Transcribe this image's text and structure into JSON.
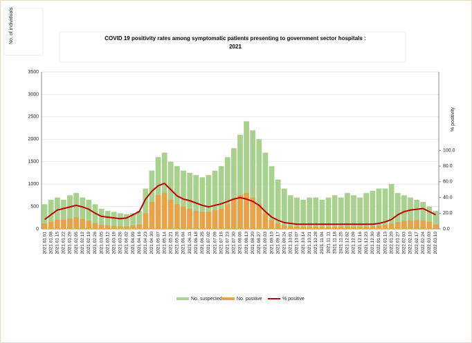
{
  "chart_data": {
    "type": "bar-line",
    "title": "COVID 19 positivity rates among symptomatic patients presenting to government sector hospitals : 2021",
    "y_label": "No. of individuals",
    "y2_label": "% positivity",
    "categories": [
      "2021.01.01",
      "2021.01.08",
      "2021.01.15",
      "2021.01.22",
      "2021.01.29",
      "2021.02.05",
      "2021.02.12",
      "2021.02.19",
      "2021.02.26",
      "2021.03.05",
      "2021.03.12",
      "2021.03.19",
      "2021.03.26",
      "2021.04.02",
      "2021.04.09",
      "2021.04.16",
      "2021.04.23",
      "2021.04.30",
      "2021.05.07",
      "2021.05.14",
      "2021.05.21",
      "2021.05.28",
      "2021.06.04",
      "2021.06.11",
      "2021.06.18",
      "2021.06.25",
      "2021.07.02",
      "2021.07.09",
      "2021.07.16",
      "2021.07.23",
      "2021.07.30",
      "2021.08.06",
      "2021.08.13",
      "2021.08.20",
      "2021.08.27",
      "2021.09.03",
      "2021.09.10",
      "2021.09.17",
      "2021.09.24",
      "2021.10.01",
      "2021.10.07",
      "2021.10.14",
      "2021.10.21",
      "2021.10.28",
      "2021.11.04",
      "2021.11.11",
      "2021.11.18",
      "2021.11.25",
      "2021.12.02",
      "2021.12.09",
      "2021.12.16",
      "2021.12.23",
      "2021.12.30",
      "2022.01.06",
      "2022.01.13",
      "2022.01.20",
      "2022.01.27",
      "2022.02.03",
      "2022.02.10",
      "2022.02.17",
      "2022.02.24",
      "2022.03.03",
      "2022.03.10"
    ],
    "series": [
      {
        "name": "No. suspected",
        "color": "#a9d18e",
        "values": [
          550,
          650,
          700,
          650,
          750,
          800,
          700,
          650,
          550,
          450,
          400,
          380,
          350,
          330,
          350,
          400,
          900,
          1300,
          1600,
          1700,
          1500,
          1400,
          1300,
          1250,
          1200,
          1150,
          1200,
          1300,
          1400,
          1600,
          1800,
          2100,
          2400,
          2200,
          2000,
          1700,
          1400,
          1100,
          900,
          750,
          700,
          650,
          700,
          700,
          650,
          700,
          750,
          700,
          800,
          750,
          700,
          800,
          850,
          900,
          900,
          1000,
          800,
          750,
          700,
          650,
          600,
          500,
          400
        ]
      },
      {
        "name": "No. positive",
        "color": "#e8a24a",
        "values": [
          120,
          160,
          200,
          200,
          230,
          260,
          220,
          180,
          130,
          90,
          80,
          70,
          60,
          60,
          80,
          100,
          350,
          600,
          750,
          800,
          650,
          550,
          500,
          450,
          400,
          380,
          380,
          420,
          450,
          550,
          650,
          750,
          800,
          700,
          550,
          350,
          200,
          130,
          80,
          60,
          50,
          45,
          45,
          50,
          45,
          45,
          45,
          45,
          50,
          45,
          45,
          50,
          55,
          70,
          90,
          120,
          150,
          180,
          190,
          200,
          190,
          160,
          100
        ]
      },
      {
        "name": "% positive",
        "color": "#c00000",
        "axis": "y2",
        "values": [
          12,
          18,
          24,
          26,
          28,
          30,
          28,
          25,
          20,
          16,
          15,
          14,
          13,
          14,
          18,
          22,
          38,
          48,
          55,
          58,
          50,
          42,
          38,
          36,
          33,
          30,
          28,
          30,
          32,
          35,
          38,
          40,
          38,
          35,
          30,
          22,
          15,
          11,
          8,
          7,
          6,
          6,
          6,
          6,
          6,
          6,
          6,
          6,
          6,
          6,
          6,
          6,
          6,
          7,
          9,
          12,
          18,
          22,
          24,
          25,
          26,
          22,
          18
        ]
      }
    ],
    "ylim": [
      0,
      3500
    ],
    "yticks": [
      0,
      500,
      1000,
      1500,
      2000,
      2500,
      3000,
      3500
    ],
    "y2lim": [
      0,
      200
    ],
    "y2ticks": [
      {
        "value": 0,
        "label": "0.0"
      },
      {
        "value": 20,
        "label": "20.0"
      },
      {
        "value": 40,
        "label": "40.0"
      },
      {
        "value": 60,
        "label": "60.0"
      },
      {
        "value": 80,
        "label": "80.0"
      },
      {
        "value": 100,
        "label": "100.0"
      }
    ],
    "grid": true,
    "legend": "bottom"
  }
}
